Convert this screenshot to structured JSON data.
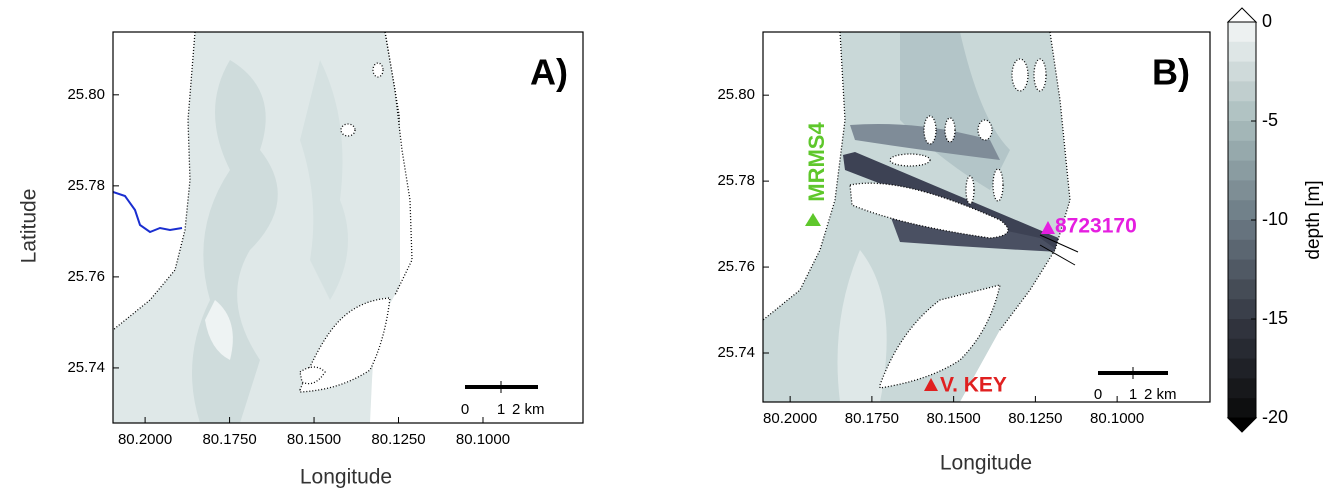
{
  "panels": [
    {
      "label": "A)",
      "xlabel": "Longitude",
      "ylabel": "Latitude",
      "xlim": [
        80.2095,
        80.0704
      ],
      "ylim": [
        25.7279,
        25.8138
      ],
      "xticks": [
        {
          "value": 80.2,
          "label": "80.2000"
        },
        {
          "value": 80.175,
          "label": "80.1750"
        },
        {
          "value": 80.15,
          "label": "80.1500"
        },
        {
          "value": 80.125,
          "label": "80.1250"
        },
        {
          "value": 80.1,
          "label": "80.1000"
        }
      ],
      "yticks": [
        {
          "value": 25.8,
          "label": "25.80"
        },
        {
          "value": 25.78,
          "label": "25.78"
        },
        {
          "value": 25.76,
          "label": "25.76"
        },
        {
          "value": 25.74,
          "label": "25.74"
        }
      ],
      "scalebar": [
        "0",
        "1",
        "2 km"
      ]
    },
    {
      "label": "B)",
      "xlabel": "Longitude",
      "xlim": [
        80.2083,
        80.0716
      ],
      "ylim": [
        25.7286,
        25.8147
      ],
      "xticks": [
        {
          "value": 80.2,
          "label": "80.2000"
        },
        {
          "value": 80.175,
          "label": "80.1750"
        },
        {
          "value": 80.15,
          "label": "80.1500"
        },
        {
          "value": 80.125,
          "label": "80.1250"
        },
        {
          "value": 80.1,
          "label": "80.1000"
        }
      ],
      "yticks": [
        {
          "value": 25.8,
          "label": "25.80"
        },
        {
          "value": 25.78,
          "label": "25.78"
        },
        {
          "value": 25.76,
          "label": "25.76"
        },
        {
          "value": 25.74,
          "label": "25.74"
        }
      ],
      "scalebar": [
        "0",
        "1",
        "2 km"
      ],
      "stations": [
        "MRMS4",
        "8723170",
        "V. KEY"
      ]
    }
  ],
  "colorbar": {
    "label": "depth [m]",
    "lim": [
      -20,
      0
    ],
    "ticks": [
      0,
      -5,
      -10,
      -15,
      -20
    ]
  }
}
